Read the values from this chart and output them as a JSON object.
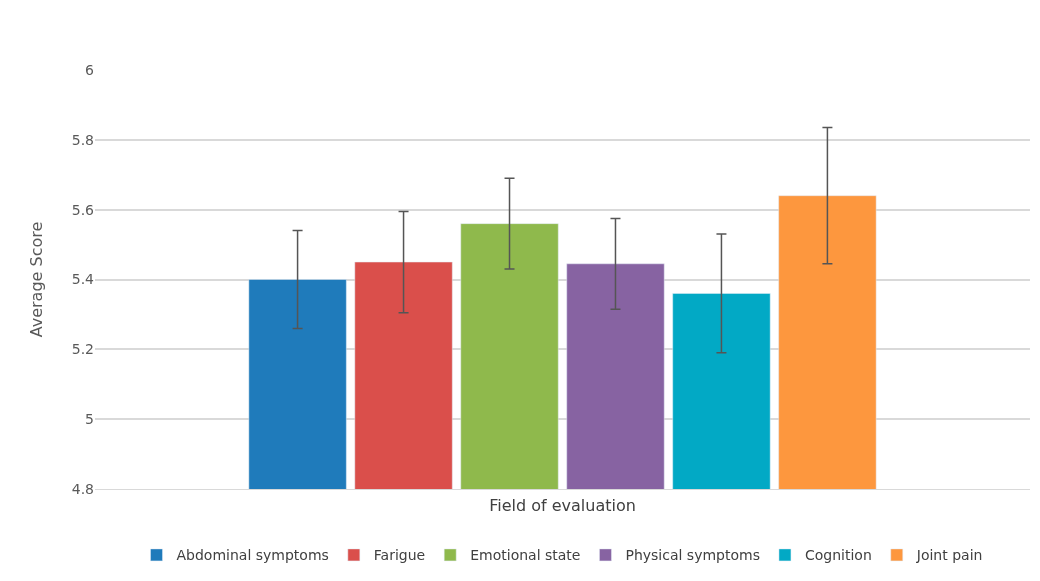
{
  "chart_data": {
    "type": "bar",
    "xlabel": "Field of evaluation",
    "ylabel": "Average Score",
    "categories": [
      null
    ],
    "series": [
      {
        "name": "Abdominal symptoms",
        "color": "#1f7bbb",
        "values": [
          5.4
        ],
        "errors": [
          0.14
        ]
      },
      {
        "name": "Farigue",
        "color": "#da4f4b",
        "values": [
          5.45
        ],
        "errors": [
          0.145
        ]
      },
      {
        "name": "Emotional state",
        "color": "#8fb94c",
        "values": [
          5.56
        ],
        "errors": [
          0.13
        ]
      },
      {
        "name": "Physical symptoms",
        "color": "#8763a2",
        "values": [
          5.445
        ],
        "errors": [
          0.13
        ]
      },
      {
        "name": "Cognition",
        "color": "#02a9c5",
        "values": [
          5.36
        ],
        "errors": [
          0.17
        ]
      },
      {
        "name": "Joint pain",
        "color": "#fd973e",
        "values": [
          5.64
        ],
        "errors": [
          0.195
        ]
      }
    ],
    "ylim": [
      4.8,
      6.0
    ],
    "yticks": [
      4.8,
      5,
      5.2,
      5.4,
      5.6,
      5.8,
      6
    ],
    "grid": "y",
    "legend": "bottom"
  }
}
